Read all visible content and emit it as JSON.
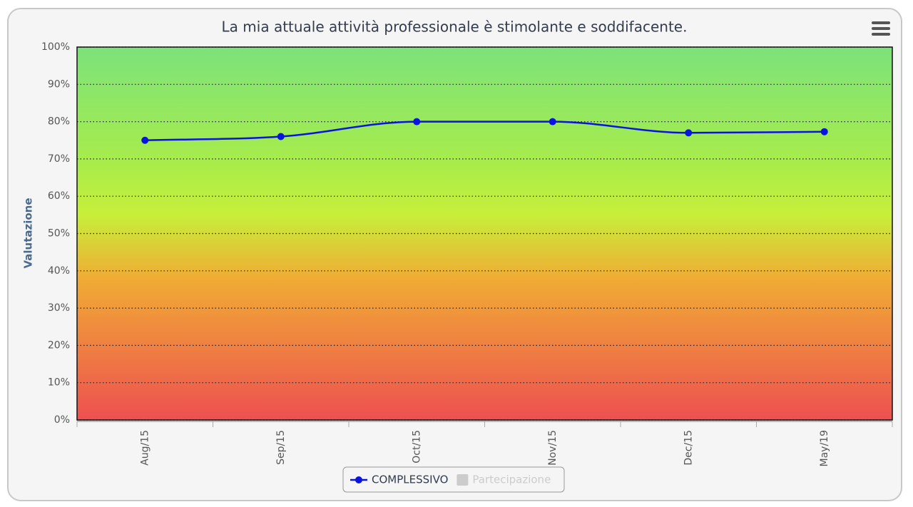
{
  "chart_data": {
    "type": "line",
    "title": "La mia attuale attività professionale è stimolante e soddifacente.",
    "y_label": "Valutazione",
    "categories": [
      "Aug/15",
      "Sep/15",
      "Oct/15",
      "Nov/15",
      "Dec/15",
      "May/19"
    ],
    "series": [
      {
        "name": "COMPLESSIVO",
        "color": "#0a14e0",
        "values": [
          75,
          76,
          80,
          80,
          77,
          77.3
        ],
        "visible": true
      },
      {
        "name": "Partecipazione",
        "color": "#cccccc",
        "values": [
          null,
          null,
          null,
          null,
          null,
          null
        ],
        "visible": false
      }
    ],
    "ylim": [
      0,
      100
    ],
    "yticks": [
      {
        "value": 0,
        "label": "0%"
      },
      {
        "value": 10,
        "label": "10%"
      },
      {
        "value": 20,
        "label": "20%"
      },
      {
        "value": 30,
        "label": "30%"
      },
      {
        "value": 40,
        "label": "40%"
      },
      {
        "value": 50,
        "label": "50%"
      },
      {
        "value": 60,
        "label": "60%"
      },
      {
        "value": 70,
        "label": "70%"
      },
      {
        "value": 80,
        "label": "80%"
      },
      {
        "value": 90,
        "label": "90%"
      },
      {
        "value": 100,
        "label": "100%"
      }
    ],
    "grid": true
  }
}
